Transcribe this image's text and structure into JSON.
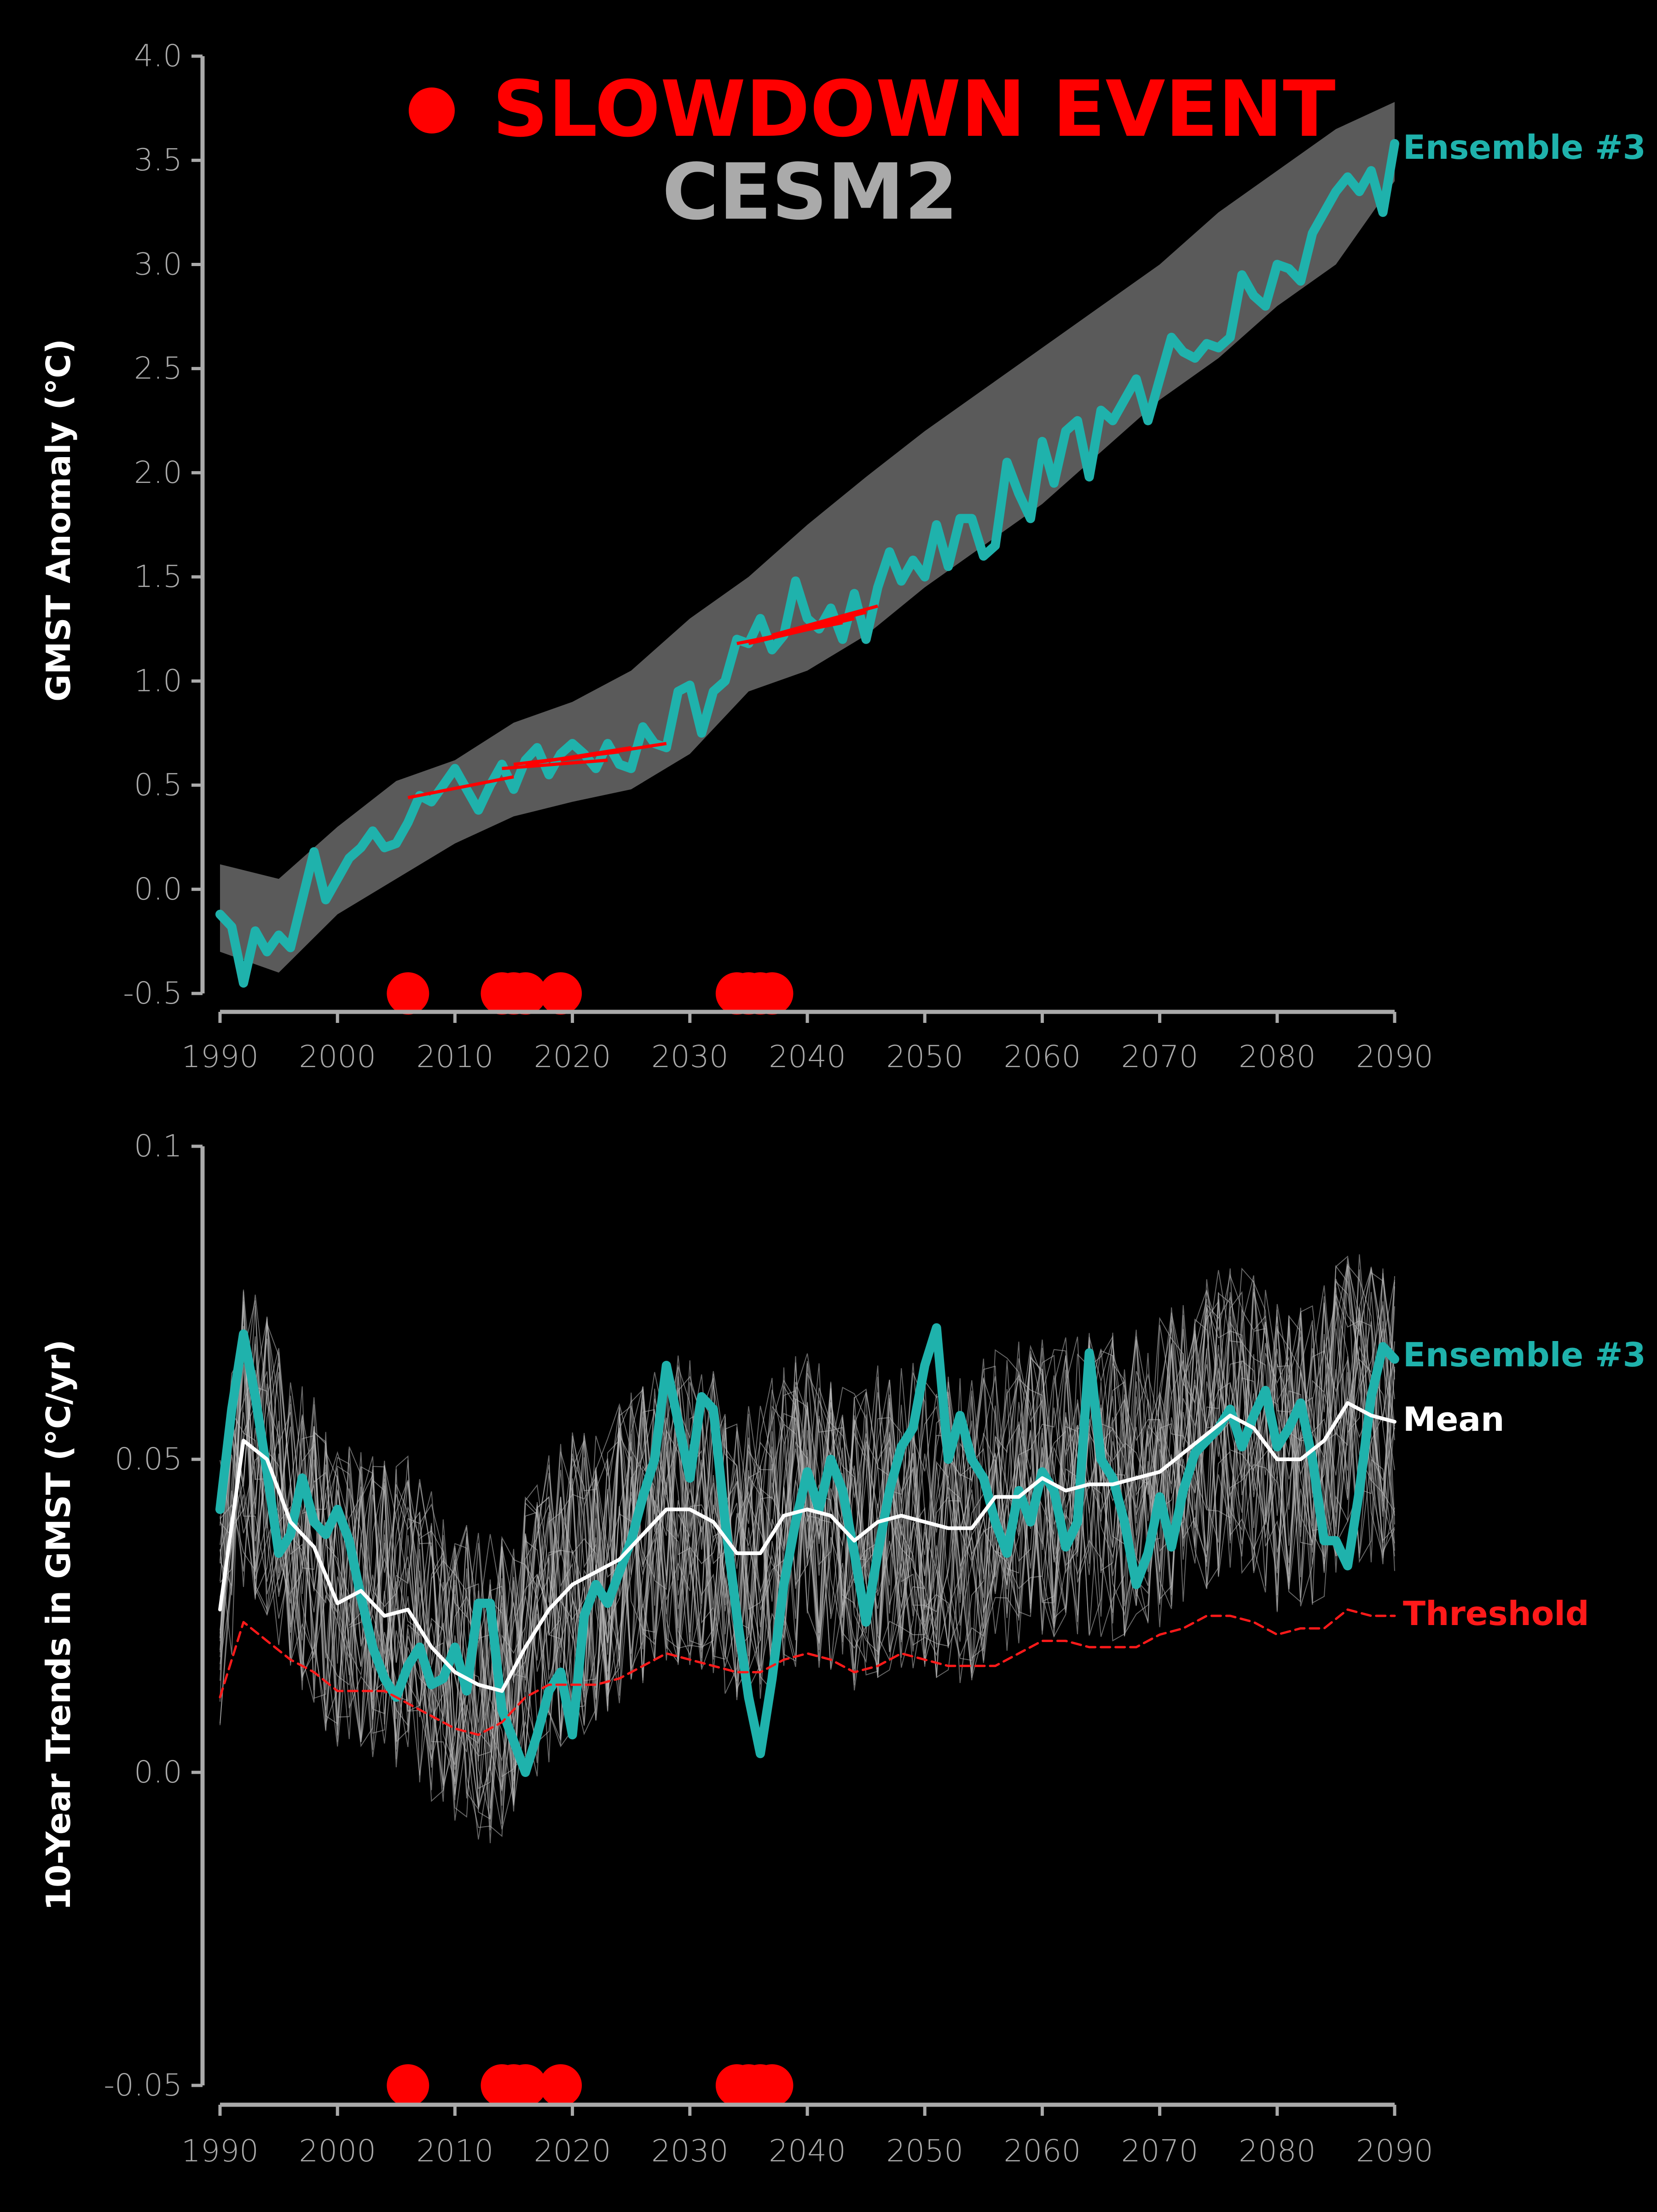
{
  "legend": {
    "marker_label": "SLOWDOWN EVENT",
    "model_label": "CESM2",
    "marker_color": "#ff0000",
    "model_color": "#aaaaaa"
  },
  "colors": {
    "background": "#000000",
    "axis": "#aaaaaa",
    "ensemble": "#1fb2ac",
    "mean": "#ffffff",
    "threshold": "#ff1a1a",
    "spread": "#5a5a5a",
    "members": "#bbbbbb",
    "event": "#ff0000"
  },
  "chart_data": [
    {
      "type": "line",
      "ylabel": "GMST Anomaly (°C)",
      "xlabel": "",
      "xlim": [
        1990,
        2090
      ],
      "ylim": [
        -0.5,
        4.0
      ],
      "xticks": [
        "1990",
        "2000",
        "2010",
        "2020",
        "2030",
        "2040",
        "2050",
        "2060",
        "2070",
        "2080",
        "2090"
      ],
      "yticks": [
        "-0.5",
        "0.0",
        "0.5",
        "1.0",
        "1.5",
        "2.0",
        "2.5",
        "3.0",
        "3.5",
        "4.0"
      ],
      "grid": false,
      "series": [
        {
          "name": "Ensemble #3",
          "x": [
            1990,
            1991,
            1992,
            1993,
            1994,
            1995,
            1996,
            1997,
            1998,
            1999,
            2000,
            2001,
            2002,
            2003,
            2004,
            2005,
            2006,
            2007,
            2008,
            2009,
            2010,
            2011,
            2012,
            2013,
            2014,
            2015,
            2016,
            2017,
            2018,
            2019,
            2020,
            2021,
            2022,
            2023,
            2024,
            2025,
            2026,
            2027,
            2028,
            2029,
            2030,
            2031,
            2032,
            2033,
            2034,
            2035,
            2036,
            2037,
            2038,
            2039,
            2040,
            2041,
            2042,
            2043,
            2044,
            2045,
            2046,
            2047,
            2048,
            2049,
            2050,
            2051,
            2052,
            2053,
            2054,
            2055,
            2056,
            2057,
            2058,
            2059,
            2060,
            2061,
            2062,
            2063,
            2064,
            2065,
            2066,
            2067,
            2068,
            2069,
            2070,
            2071,
            2072,
            2073,
            2074,
            2075,
            2076,
            2077,
            2078,
            2079,
            2080,
            2081,
            2082,
            2083,
            2084,
            2085,
            2086,
            2087,
            2088,
            2089,
            2090
          ],
          "y": [
            -0.12,
            -0.18,
            -0.45,
            -0.2,
            -0.3,
            -0.22,
            -0.28,
            -0.05,
            0.18,
            -0.05,
            0.05,
            0.15,
            0.2,
            0.28,
            0.2,
            0.22,
            0.32,
            0.45,
            0.42,
            0.5,
            0.58,
            0.48,
            0.38,
            0.5,
            0.6,
            0.48,
            0.62,
            0.68,
            0.55,
            0.65,
            0.7,
            0.65,
            0.58,
            0.7,
            0.6,
            0.58,
            0.78,
            0.7,
            0.68,
            0.95,
            0.98,
            0.75,
            0.95,
            1.0,
            1.2,
            1.18,
            1.3,
            1.15,
            1.22,
            1.48,
            1.3,
            1.25,
            1.35,
            1.2,
            1.42,
            1.2,
            1.45,
            1.62,
            1.48,
            1.58,
            1.5,
            1.75,
            1.55,
            1.78,
            1.78,
            1.6,
            1.65,
            2.05,
            1.9,
            1.78,
            2.15,
            1.95,
            2.2,
            2.25,
            1.98,
            2.3,
            2.25,
            2.35,
            2.45,
            2.25,
            2.45,
            2.65,
            2.58,
            2.55,
            2.62,
            2.6,
            2.65,
            2.95,
            2.85,
            2.8,
            3.0,
            2.98,
            2.92,
            3.15,
            3.25,
            3.35,
            3.42,
            3.35,
            3.45,
            3.25,
            3.58
          ]
        }
      ],
      "band": {
        "x": [
          1990,
          1995,
          2000,
          2005,
          2010,
          2015,
          2020,
          2025,
          2030,
          2035,
          2040,
          2045,
          2050,
          2055,
          2060,
          2065,
          2070,
          2075,
          2080,
          2085,
          2090
        ],
        "lower": [
          -0.3,
          -0.4,
          -0.12,
          0.05,
          0.22,
          0.35,
          0.42,
          0.48,
          0.65,
          0.95,
          1.05,
          1.22,
          1.45,
          1.65,
          1.85,
          2.1,
          2.35,
          2.55,
          2.8,
          3.0,
          3.4
        ],
        "upper": [
          0.12,
          0.05,
          0.3,
          0.52,
          0.62,
          0.8,
          0.9,
          1.05,
          1.3,
          1.5,
          1.75,
          1.98,
          2.2,
          2.4,
          2.6,
          2.8,
          3.0,
          3.25,
          3.45,
          3.65,
          3.78
        ]
      },
      "trend_segments": [
        {
          "x0": 2006,
          "x1": 2015,
          "y0": 0.44,
          "y1": 0.54
        },
        {
          "x0": 2014,
          "x1": 2023,
          "y0": 0.58,
          "y1": 0.62
        },
        {
          "x0": 2015,
          "x1": 2024,
          "y0": 0.6,
          "y1": 0.66
        },
        {
          "x0": 2016,
          "x1": 2025,
          "y0": 0.6,
          "y1": 0.68
        },
        {
          "x0": 2019,
          "x1": 2028,
          "y0": 0.62,
          "y1": 0.7
        },
        {
          "x0": 2034,
          "x1": 2043,
          "y0": 1.18,
          "y1": 1.28
        },
        {
          "x0": 2035,
          "x1": 2044,
          "y0": 1.18,
          "y1": 1.3
        },
        {
          "x0": 2036,
          "x1": 2045,
          "y0": 1.2,
          "y1": 1.33
        },
        {
          "x0": 2037,
          "x1": 2046,
          "y0": 1.22,
          "y1": 1.36
        }
      ],
      "events": [
        2006,
        2014,
        2015,
        2016,
        2019,
        2034,
        2035,
        2036,
        2037
      ]
    },
    {
      "type": "line",
      "ylabel": "10-Year Trends in GMST (°C/yr)",
      "xlabel": "",
      "xlim": [
        1990,
        2090
      ],
      "ylim": [
        -0.05,
        0.1
      ],
      "xticks": [
        "1990",
        "2000",
        "2010",
        "2020",
        "2030",
        "2040",
        "2050",
        "2060",
        "2070",
        "2080",
        "2090"
      ],
      "yticks": [
        "-0.05",
        "0.0",
        "0.05",
        "0.1"
      ],
      "grid": false,
      "series": [
        {
          "name": "Ensemble #3",
          "x": [
            1990,
            1991,
            1992,
            1993,
            1994,
            1995,
            1996,
            1997,
            1998,
            1999,
            2000,
            2001,
            2002,
            2003,
            2004,
            2005,
            2006,
            2007,
            2008,
            2009,
            2010,
            2011,
            2012,
            2013,
            2014,
            2015,
            2016,
            2017,
            2018,
            2019,
            2020,
            2021,
            2022,
            2023,
            2024,
            2025,
            2026,
            2027,
            2028,
            2029,
            2030,
            2031,
            2032,
            2033,
            2034,
            2035,
            2036,
            2037,
            2038,
            2039,
            2040,
            2041,
            2042,
            2043,
            2044,
            2045,
            2046,
            2047,
            2048,
            2049,
            2050,
            2051,
            2052,
            2053,
            2054,
            2055,
            2056,
            2057,
            2058,
            2059,
            2060,
            2061,
            2062,
            2063,
            2064,
            2065,
            2066,
            2067,
            2068,
            2069,
            2070,
            2071,
            2072,
            2073,
            2074,
            2075,
            2076,
            2077,
            2078,
            2079,
            2080,
            2081,
            2082,
            2083,
            2084,
            2085,
            2086,
            2087,
            2088,
            2089,
            2090
          ],
          "y": [
            0.042,
            0.058,
            0.07,
            0.06,
            0.048,
            0.035,
            0.038,
            0.047,
            0.04,
            0.038,
            0.042,
            0.037,
            0.028,
            0.02,
            0.015,
            0.012,
            0.017,
            0.02,
            0.014,
            0.015,
            0.02,
            0.013,
            0.027,
            0.027,
            0.01,
            0.005,
            0.0,
            0.006,
            0.013,
            0.016,
            0.006,
            0.025,
            0.03,
            0.027,
            0.032,
            0.037,
            0.044,
            0.05,
            0.065,
            0.056,
            0.047,
            0.06,
            0.058,
            0.04,
            0.025,
            0.012,
            0.003,
            0.015,
            0.03,
            0.04,
            0.048,
            0.042,
            0.05,
            0.045,
            0.035,
            0.024,
            0.035,
            0.045,
            0.052,
            0.055,
            0.065,
            0.071,
            0.05,
            0.057,
            0.05,
            0.047,
            0.04,
            0.035,
            0.045,
            0.04,
            0.048,
            0.045,
            0.036,
            0.04,
            0.067,
            0.05,
            0.047,
            0.04,
            0.03,
            0.035,
            0.044,
            0.036,
            0.045,
            0.051,
            0.053,
            0.055,
            0.058,
            0.052,
            0.057,
            0.061,
            0.052,
            0.055,
            0.059,
            0.05,
            0.037,
            0.037,
            0.033,
            0.045,
            0.06,
            0.068,
            0.066
          ]
        },
        {
          "name": "Mean",
          "x": [
            1990,
            1992,
            1994,
            1996,
            1998,
            2000,
            2002,
            2004,
            2006,
            2008,
            2010,
            2012,
            2014,
            2016,
            2018,
            2020,
            2022,
            2024,
            2026,
            2028,
            2030,
            2032,
            2034,
            2036,
            2038,
            2040,
            2042,
            2044,
            2046,
            2048,
            2050,
            2052,
            2054,
            2056,
            2058,
            2060,
            2062,
            2064,
            2066,
            2068,
            2070,
            2072,
            2074,
            2076,
            2078,
            2080,
            2082,
            2084,
            2086,
            2088,
            2090
          ],
          "y": [
            0.026,
            0.053,
            0.05,
            0.04,
            0.036,
            0.027,
            0.029,
            0.025,
            0.026,
            0.02,
            0.016,
            0.014,
            0.013,
            0.02,
            0.026,
            0.03,
            0.032,
            0.034,
            0.038,
            0.042,
            0.042,
            0.04,
            0.035,
            0.035,
            0.041,
            0.042,
            0.041,
            0.037,
            0.04,
            0.041,
            0.04,
            0.039,
            0.039,
            0.044,
            0.044,
            0.047,
            0.045,
            0.046,
            0.046,
            0.047,
            0.048,
            0.051,
            0.054,
            0.057,
            0.055,
            0.05,
            0.05,
            0.053,
            0.059,
            0.057,
            0.056
          ]
        },
        {
          "name": "Threshold",
          "x": [
            1990,
            1992,
            1994,
            1996,
            1998,
            2000,
            2002,
            2004,
            2006,
            2008,
            2010,
            2012,
            2014,
            2016,
            2018,
            2020,
            2022,
            2024,
            2026,
            2028,
            2030,
            2032,
            2034,
            2036,
            2038,
            2040,
            2042,
            2044,
            2046,
            2048,
            2050,
            2052,
            2054,
            2056,
            2058,
            2060,
            2062,
            2064,
            2066,
            2068,
            2070,
            2072,
            2074,
            2076,
            2078,
            2080,
            2082,
            2084,
            2086,
            2088,
            2090
          ],
          "y": [
            0.012,
            0.024,
            0.021,
            0.018,
            0.016,
            0.013,
            0.013,
            0.013,
            0.011,
            0.009,
            0.007,
            0.006,
            0.008,
            0.012,
            0.014,
            0.014,
            0.014,
            0.015,
            0.017,
            0.019,
            0.018,
            0.017,
            0.016,
            0.016,
            0.018,
            0.019,
            0.018,
            0.016,
            0.017,
            0.019,
            0.018,
            0.017,
            0.017,
            0.017,
            0.019,
            0.021,
            0.021,
            0.02,
            0.02,
            0.02,
            0.022,
            0.023,
            0.025,
            0.025,
            0.024,
            0.022,
            0.023,
            0.023,
            0.026,
            0.025,
            0.025
          ]
        }
      ],
      "events": [
        2006,
        2014,
        2015,
        2016,
        2019,
        2034,
        2035,
        2036,
        2037
      ]
    }
  ]
}
